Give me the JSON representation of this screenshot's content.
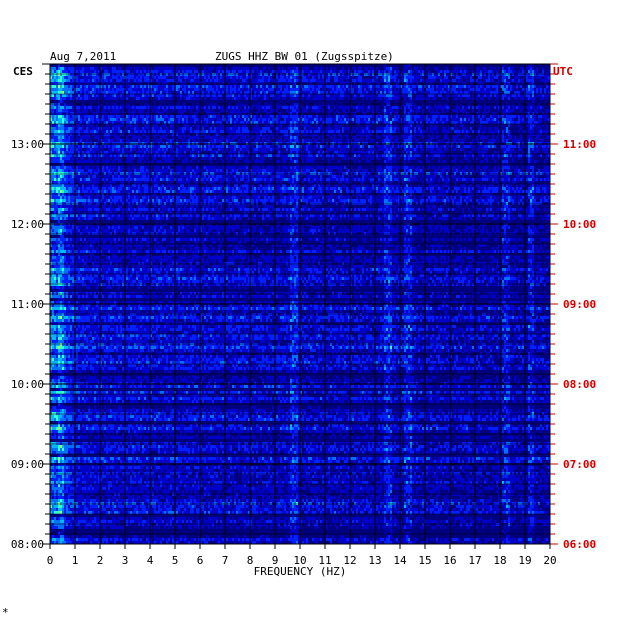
{
  "header": {
    "date": "Aug 7,2011",
    "station": "ZUGS HHZ BW 01 (Zugsspitze)",
    "left_timezone": "CES",
    "right_timezone": "UTC"
  },
  "footer_mark": "*",
  "colors": {
    "left_axis": "#000000",
    "right_axis": "#cc0000",
    "background": "#00007f",
    "palette": [
      "#00007f",
      "#0000c8",
      "#0020ff",
      "#0070ff",
      "#00b8ff",
      "#30ffcf",
      "#a0ff60",
      "#ffff00",
      "#ff8000",
      "#ff2000"
    ]
  },
  "chart_data": {
    "type": "heatmap",
    "title": "ZUGS HHZ BW 01 (Zugsspitze)",
    "xlabel": "FREQUENCY (HZ)",
    "ylabel": "",
    "xlim": [
      0,
      20
    ],
    "x_ticks": [
      "0",
      "1",
      "2",
      "3",
      "4",
      "5",
      "6",
      "7",
      "8",
      "9",
      "10",
      "11",
      "12",
      "13",
      "14",
      "15",
      "16",
      "17",
      "18",
      "19",
      "20"
    ],
    "ylim_hours_local": [
      8,
      14
    ],
    "y_ticks_left": [
      "08:00",
      "09:00",
      "10:00",
      "11:00",
      "12:00",
      "13:00"
    ],
    "y_ticks_right": [
      "06:00",
      "07:00",
      "08:00",
      "09:00",
      "10:00",
      "11:00"
    ],
    "grid": true,
    "notes": "spectrogram: rows are time (bottom=older), columns are frequency; colour = spectral power; strong lines near 0.5, 9.7, 13.5, 14.3, 18.2 and 19.2 Hz"
  }
}
